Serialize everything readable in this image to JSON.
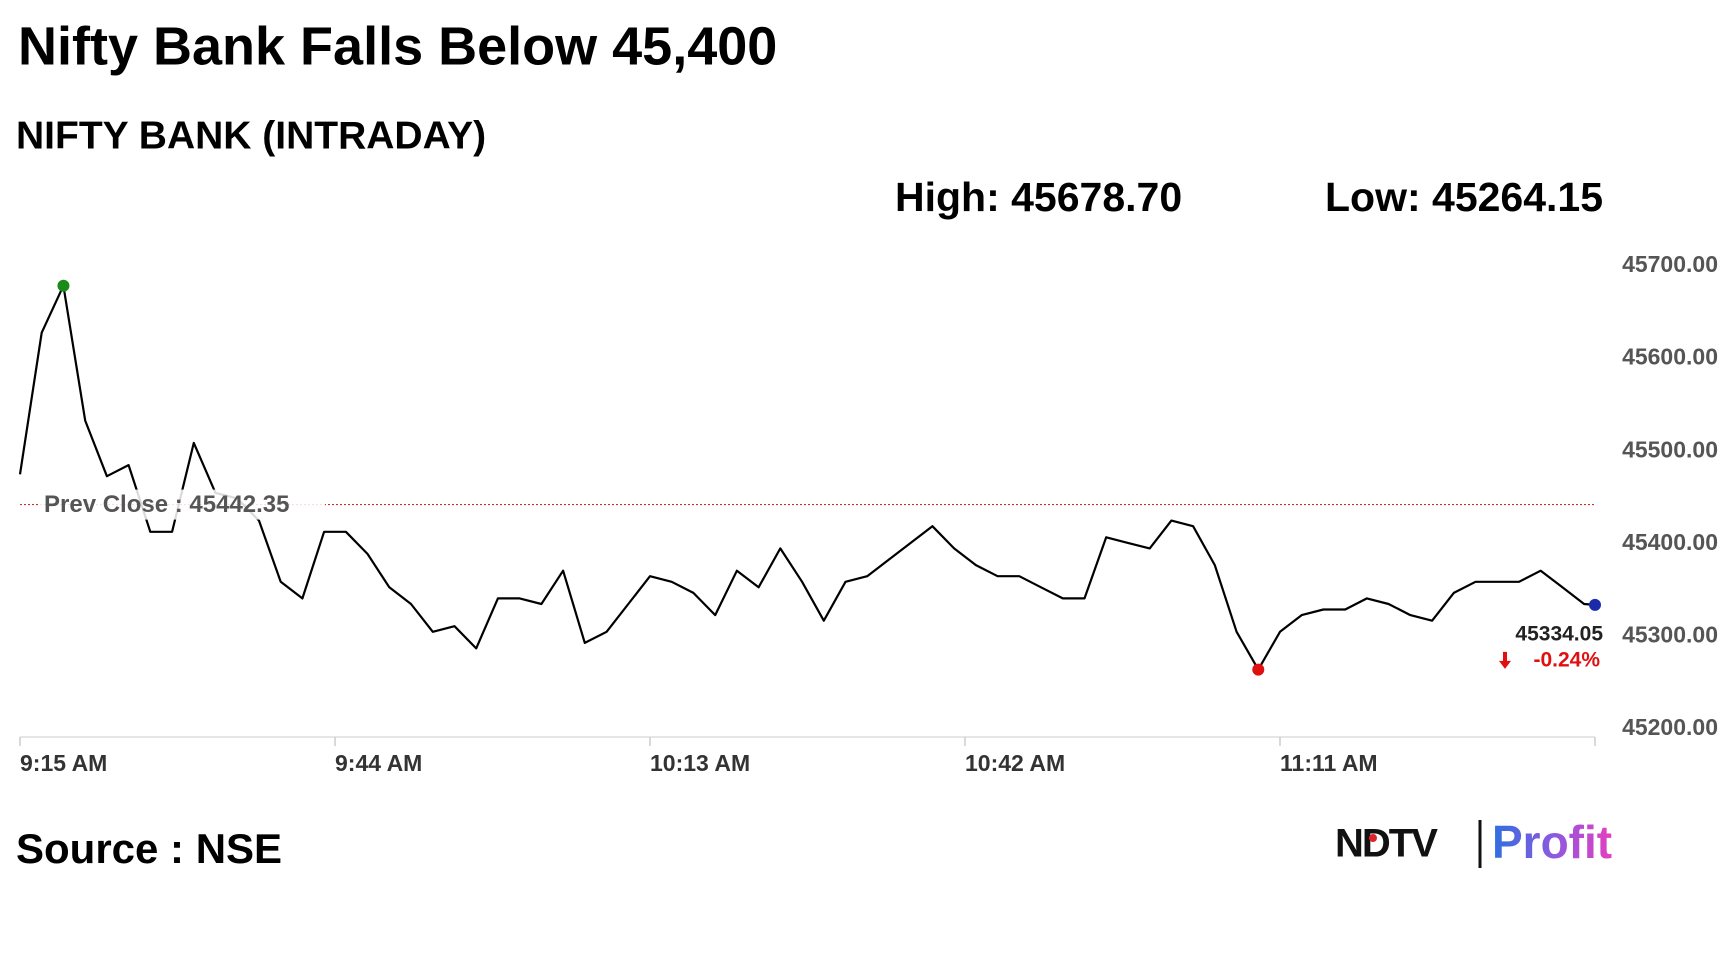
{
  "chart_data": {
    "type": "line",
    "title": "Nifty Bank Falls Below 45,400",
    "subtitle": "NIFTY BANK (INTRADAY)",
    "high": {
      "value": 45678.7,
      "label": "High: 45678.70"
    },
    "low": {
      "value": 45264.15,
      "label": "Low: 45264.15"
    },
    "prev_close": {
      "value": 45442.35,
      "label": "Prev Close : 45442.35"
    },
    "last": {
      "value": 45334.05,
      "label": "45334.05"
    },
    "change": {
      "value": -0.24,
      "label": "-0.24%"
    },
    "color": "#000000",
    "x": [
      0,
      2,
      4,
      6,
      8,
      10,
      12,
      14,
      16,
      18,
      20,
      22,
      24,
      26,
      28,
      30,
      32,
      34,
      36,
      38,
      40,
      42,
      44,
      46,
      48,
      50,
      52,
      54,
      56,
      58,
      60,
      62,
      64,
      66,
      68,
      70,
      72,
      74,
      76,
      78,
      80,
      82,
      84,
      86,
      88,
      90,
      92,
      94,
      96,
      98,
      100,
      102,
      104,
      106,
      108,
      110,
      112,
      114,
      116,
      118,
      120,
      122,
      124,
      126,
      128,
      130,
      132,
      134,
      136,
      138,
      140,
      142,
      144,
      145
    ],
    "values": [
      45475,
      45628,
      45678.7,
      45533,
      45473,
      45485,
      45413,
      45413,
      45509,
      45455,
      45449,
      45425,
      45359,
      45341,
      45413,
      45413,
      45389,
      45353,
      45335,
      45305,
      45311,
      45287,
      45341,
      45341,
      45335,
      45371,
      45293,
      45305,
      45335,
      45365,
      45359,
      45347,
      45323,
      45371,
      45353,
      45395,
      45359,
      45317,
      45359,
      45365,
      45383,
      45401,
      45419,
      45395,
      45377,
      45365,
      45365,
      45353,
      45341,
      45341,
      45407,
      45401,
      45395,
      45425,
      45419,
      45377,
      45305,
      45264.15,
      45305,
      45323,
      45329,
      45329,
      45341,
      45335,
      45323,
      45317,
      45347,
      45359,
      45359,
      45359,
      45371,
      45353,
      45335,
      45334.05
    ],
    "xlim": [
      0,
      145
    ],
    "xticks": [
      {
        "value": 0,
        "label": "9:15 AM"
      },
      {
        "value": 29,
        "label": "9:44 AM"
      },
      {
        "value": 58,
        "label": "10:13 AM"
      },
      {
        "value": 87,
        "label": "10:42 AM"
      },
      {
        "value": 116,
        "label": "11:11 AM"
      }
    ],
    "ylim": [
      45200,
      45700
    ],
    "yticks": [
      {
        "value": 45200,
        "label": "45200.00"
      },
      {
        "value": 45300,
        "label": "45300.00"
      },
      {
        "value": 45400,
        "label": "45400.00"
      },
      {
        "value": 45500,
        "label": "45500.00"
      },
      {
        "value": 45600,
        "label": "45600.00"
      },
      {
        "value": 45700,
        "label": "45700.00"
      }
    ],
    "grid": false,
    "source": "Source : NSE",
    "logo": [
      "NDTV",
      "Profit"
    ]
  }
}
